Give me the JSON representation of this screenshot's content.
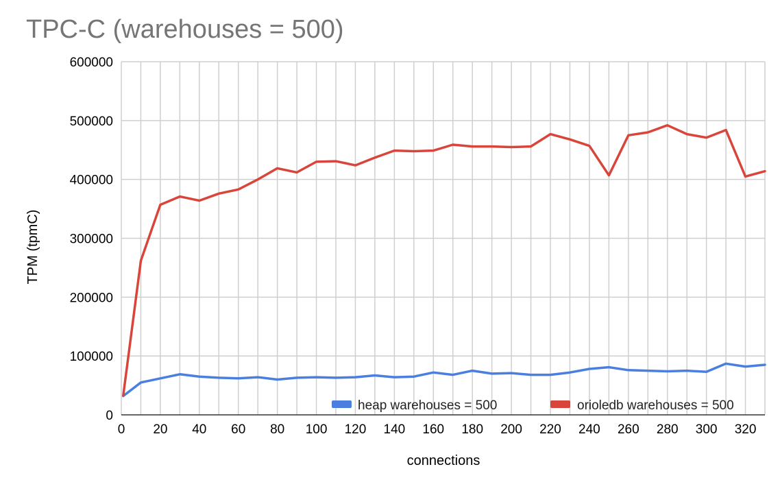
{
  "chart_data": {
    "type": "line",
    "title": "TPC-C (warehouses = 500)",
    "xlabel": "connections",
    "ylabel": "TPM (tpmC)",
    "xlim": [
      0,
      330
    ],
    "ylim": [
      0,
      600000
    ],
    "x_ticks": [
      0,
      20,
      40,
      60,
      80,
      100,
      120,
      140,
      160,
      180,
      200,
      220,
      240,
      260,
      280,
      300,
      320
    ],
    "y_ticks": [
      0,
      100000,
      200000,
      300000,
      400000,
      500000,
      600000
    ],
    "grid": true,
    "legend_position": "bottom-right",
    "x": [
      1,
      10,
      20,
      30,
      40,
      50,
      60,
      70,
      80,
      90,
      100,
      110,
      120,
      130,
      140,
      150,
      160,
      170,
      180,
      190,
      200,
      210,
      220,
      230,
      240,
      250,
      260,
      270,
      280,
      290,
      300,
      310,
      320,
      330
    ],
    "series": [
      {
        "name": "heap warehouses = 500",
        "color": "#4a7fe0",
        "values": [
          32000,
          55000,
          62000,
          69000,
          65000,
          63000,
          62000,
          64000,
          60000,
          63000,
          64000,
          63000,
          64000,
          67000,
          64000,
          65000,
          72000,
          68000,
          75000,
          70000,
          71000,
          68000,
          68000,
          72000,
          78000,
          81000,
          76000,
          75000,
          74000,
          75000,
          73000,
          87000,
          82000,
          85000
        ]
      },
      {
        "name": "orioledb warehouses = 500",
        "color": "#d9453a",
        "values": [
          33000,
          262000,
          357000,
          371000,
          364000,
          376000,
          383000,
          400000,
          419000,
          412000,
          430000,
          431000,
          424000,
          437000,
          449000,
          448000,
          449000,
          459000,
          456000,
          456000,
          455000,
          456000,
          477000,
          468000,
          457000,
          407000,
          475000,
          480000,
          492000,
          477000,
          471000,
          484000,
          405000,
          414000
        ]
      }
    ]
  }
}
